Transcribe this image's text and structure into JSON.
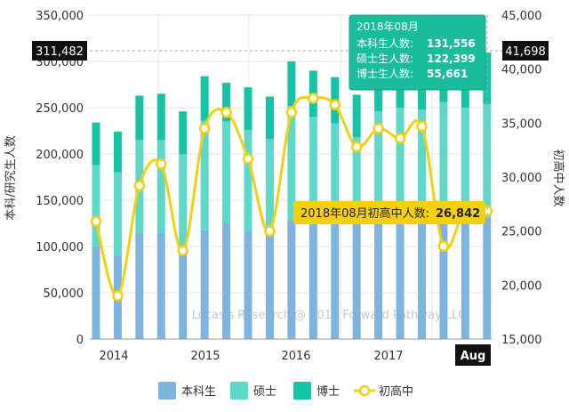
{
  "chart_data": {
    "type": "bar",
    "watermark": "Lucas's Research @ 2018 Forward Pathway LLC",
    "y_left": {
      "label": "本科/研究生人数",
      "min": 0,
      "max": 350000,
      "ticks": [
        "0",
        "50,000",
        "100,000",
        "150,000",
        "200,000",
        "250,000",
        "300,000",
        "350,000"
      ]
    },
    "y_right": {
      "label": "初高中人数",
      "min": 15000,
      "max": 45000,
      "ticks": [
        "15,000",
        "20,000",
        "25,000",
        "30,000",
        "35,000",
        "40,000",
        "45,000"
      ]
    },
    "x_ticks": [
      "2014",
      "2015",
      "2016",
      "2017"
    ],
    "x_highlight": "Aug",
    "crosshair_left_value": "311,482",
    "crosshair_right_value": "41,698",
    "categories": [
      "2013-11",
      "2014-02",
      "2014-05",
      "2014-08",
      "2015-02",
      "2015-05",
      "2015-08",
      "2015-11",
      "2016-02",
      "2016-05",
      "2016-08",
      "2016-11",
      "2017-02",
      "2017-05",
      "2017-08",
      "2017-11",
      "2018-02",
      "2018-05",
      "2018-08"
    ],
    "bar_series": [
      {
        "name": "本科生",
        "color": "#7FB4DE",
        "values": [
          100000,
          90000,
          115000,
          115000,
          92000,
          118000,
          125000,
          118000,
          118000,
          128000,
          130000,
          125000,
          128000,
          128000,
          130000,
          128000,
          128000,
          130000,
          131556
        ]
      },
      {
        "name": "硕士",
        "color": "#5ED8C8",
        "values": [
          88000,
          90000,
          100000,
          100000,
          108000,
          118000,
          110000,
          108000,
          98000,
          124000,
          110000,
          108000,
          90000,
          118000,
          120000,
          120000,
          128000,
          120000,
          122399
        ]
      },
      {
        "name": "博士",
        "color": "#14C4A4",
        "values": [
          46000,
          44000,
          48000,
          50000,
          46000,
          48000,
          42000,
          46000,
          46000,
          48000,
          50000,
          50000,
          46000,
          50000,
          52000,
          50000,
          48000,
          50000,
          55661
        ]
      }
    ],
    "line_series": {
      "name": "初高中",
      "color": "#F5D010",
      "values": [
        25900,
        19000,
        29200,
        31200,
        23200,
        34500,
        36000,
        31700,
        25000,
        36000,
        37300,
        36700,
        32800,
        34500,
        33600,
        34700,
        23600,
        27000,
        26842
      ]
    },
    "tooltip": {
      "title": "2018年08月",
      "rows": [
        {
          "label": "本科生人数:",
          "value": "131,556"
        },
        {
          "label": "硕士生人数:",
          "value": "122,399"
        },
        {
          "label": "博士生人数:",
          "value": "55,661"
        }
      ]
    },
    "line_tooltip": {
      "label": "2018年08月初高中人数:",
      "value": "26,842"
    },
    "legend": [
      {
        "name": "本科生",
        "kind": "bar",
        "color": "#7FB4DE"
      },
      {
        "name": "硕士",
        "kind": "bar",
        "color": "#5ED8C8"
      },
      {
        "name": "博士",
        "kind": "bar",
        "color": "#14C4A4"
      },
      {
        "name": "初高中",
        "kind": "line",
        "color": "#F5D010"
      }
    ]
  }
}
